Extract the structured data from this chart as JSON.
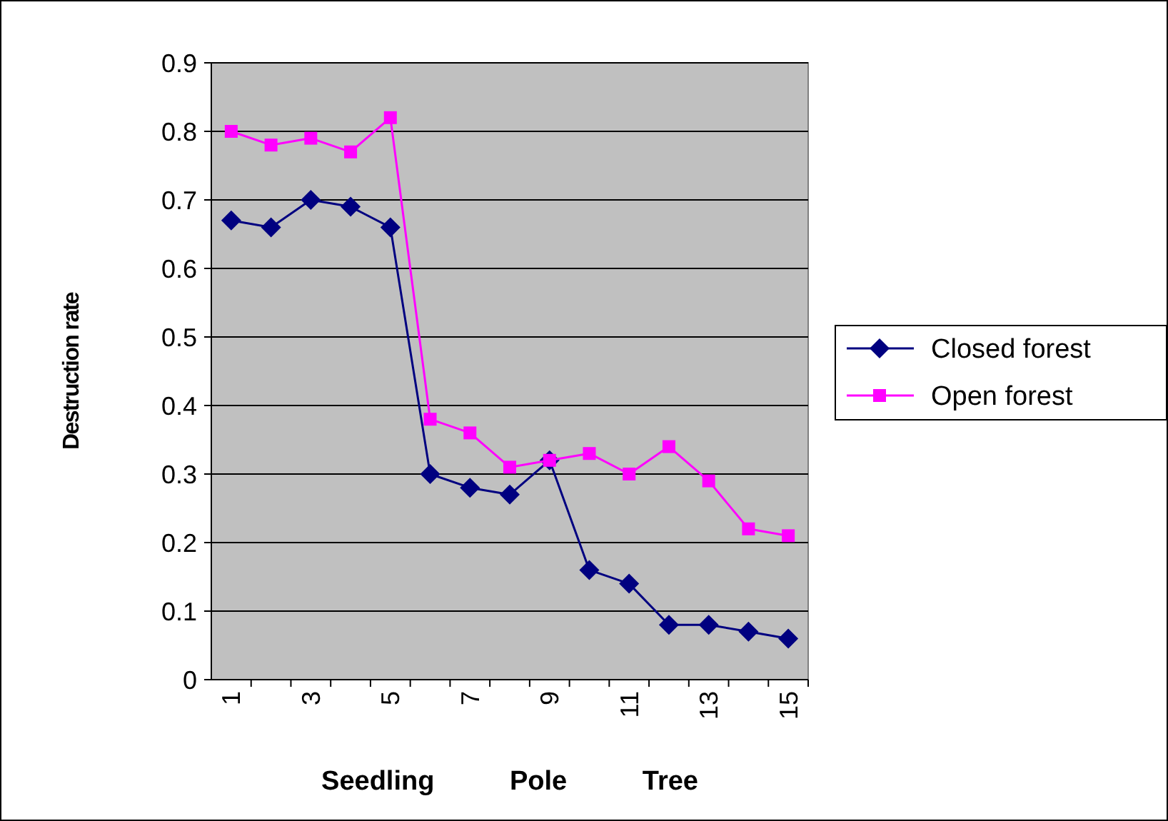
{
  "chart_data": {
    "type": "line",
    "ylabel": "Destruction rate",
    "xlabel": "Seedling          Pole          Tree",
    "categories": [
      "1",
      null,
      "3",
      null,
      "5",
      null,
      "7",
      null,
      "9",
      null,
      "11",
      null,
      "13",
      null,
      "15"
    ],
    "ylim": [
      0,
      0.9
    ],
    "yticks": [
      0,
      0.1,
      0.2,
      0.3,
      0.4,
      0.5,
      0.6,
      0.7,
      0.8,
      0.9
    ],
    "grid": "y",
    "legend": "right",
    "series": [
      {
        "name": "Closed forest",
        "color": "#000080",
        "marker": "diamond",
        "values": [
          0.67,
          0.66,
          0.7,
          0.69,
          0.66,
          0.3,
          0.28,
          0.27,
          0.32,
          0.16,
          0.14,
          0.08,
          0.08,
          0.07,
          0.06
        ]
      },
      {
        "name": "Open forest",
        "color": "#ff00ff",
        "marker": "square",
        "values": [
          0.8,
          0.78,
          0.79,
          0.77,
          0.82,
          0.38,
          0.36,
          0.31,
          0.32,
          0.33,
          0.3,
          0.34,
          0.29,
          0.22,
          0.21
        ]
      }
    ]
  }
}
